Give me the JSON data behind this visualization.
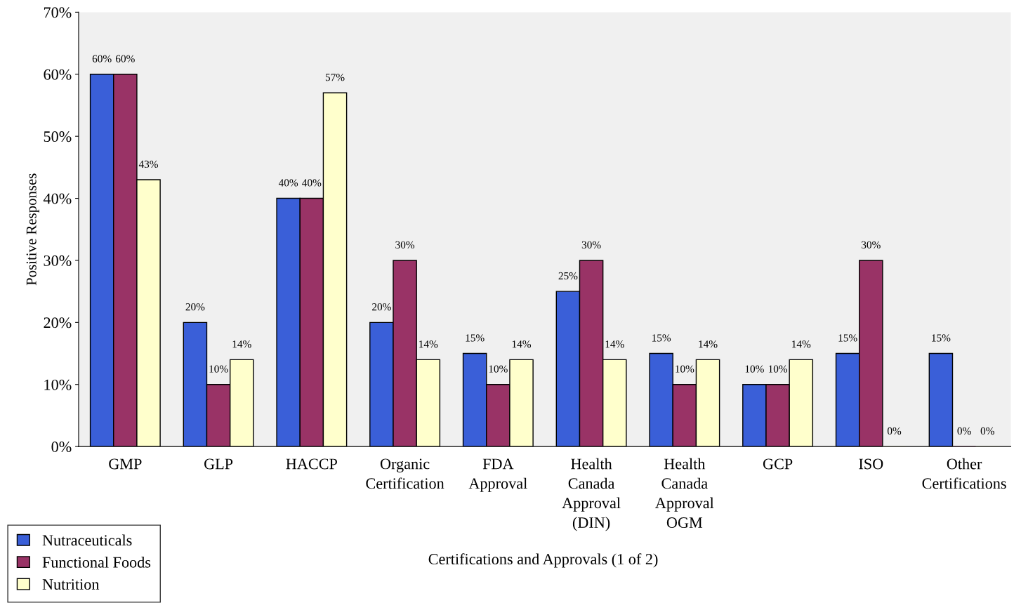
{
  "chart_data": {
    "type": "bar",
    "xlabel": "Certifications and Approvals (1 of 2)",
    "ylabel": "Positive Responses",
    "categories": [
      "GMP",
      "GLP",
      "HACCP",
      "Organic\nCertification",
      "FDA\nApproval",
      "Health\nCanada\nApproval\n(DIN)",
      "Health\nCanada\nApproval\nOGM",
      "GCP",
      "ISO",
      "Other\nCertifications"
    ],
    "series": [
      {
        "name": "Nutraceuticals",
        "color": "#3a5fd8",
        "values": [
          60,
          20,
          40,
          20,
          15,
          25,
          15,
          10,
          15,
          15
        ],
        "value_labels": [
          "60%",
          "20%",
          "40%",
          "20%",
          "15%",
          "25%",
          "15%",
          "10%",
          "15%",
          "15%"
        ]
      },
      {
        "name": "Functional Foods",
        "color": "#993366",
        "values": [
          60,
          10,
          40,
          30,
          10,
          30,
          10,
          10,
          30,
          0
        ],
        "value_labels": [
          "60%",
          "10%",
          "40%",
          "30%",
          "10%",
          "30%",
          "10%",
          "10%",
          "30%",
          "0%"
        ]
      },
      {
        "name": "Nutrition",
        "color": "#ffffcc",
        "values": [
          43,
          14,
          57,
          14,
          14,
          14,
          14,
          14,
          0,
          0
        ],
        "value_labels": [
          "43%",
          "14%",
          "57%",
          "14%",
          "14%",
          "14%",
          "14%",
          "14%",
          "0%",
          "0%"
        ]
      }
    ],
    "ylim": [
      0,
      70
    ],
    "yticks": [
      {
        "value": 0,
        "label": "0%"
      },
      {
        "value": 10,
        "label": "10%"
      },
      {
        "value": 20,
        "label": "20%"
      },
      {
        "value": 30,
        "label": "30%"
      },
      {
        "value": 40,
        "label": "40%"
      },
      {
        "value": 50,
        "label": "50%"
      },
      {
        "value": 60,
        "label": "60%"
      },
      {
        "value": 70,
        "label": "70%"
      }
    ],
    "grid": false,
    "legend": "bottom left"
  }
}
